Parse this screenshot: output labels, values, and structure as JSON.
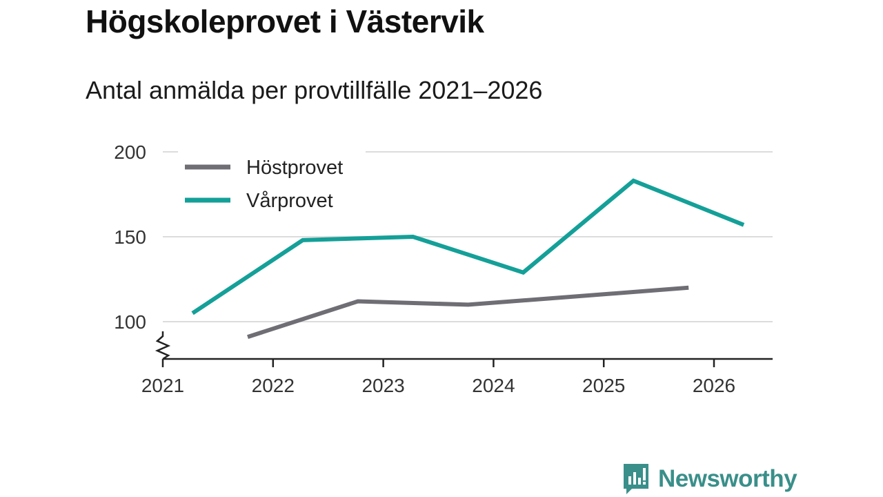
{
  "title": "Högskoleprovet i Västervik",
  "subtitle": "Antal anmälda per provtillfälle 2021–2026",
  "brand": {
    "name": "Newsworthy",
    "icon": "newsworthy-logo-icon",
    "color": "#3a8f8a"
  },
  "chart_data": {
    "type": "line",
    "title": "Högskoleprovet i Västervik",
    "subtitle": "Antal anmälda per provtillfälle 2021–2026",
    "xlabel": "",
    "ylabel": "",
    "xlim": [
      2021,
      2026.6
    ],
    "ylim": [
      78,
      200
    ],
    "y_axis_break": true,
    "grid": true,
    "legend_position": "top-left",
    "x_ticks": [
      "2021",
      "2022",
      "2023",
      "2024",
      "2025",
      "2026"
    ],
    "y_ticks": [
      "100",
      "150",
      "200"
    ],
    "series": [
      {
        "name": "Höstprovet",
        "color": "#6e6e74",
        "x": [
          2021.77,
          2022.77,
          2023.77,
          2024.77,
          2025.77
        ],
        "values": [
          91,
          112,
          110,
          115,
          120
        ]
      },
      {
        "name": "Vårprovet",
        "color": "#14a098",
        "x": [
          2021.27,
          2022.27,
          2023.27,
          2024.27,
          2025.27,
          2026.27
        ],
        "values": [
          105,
          148,
          150,
          129,
          183,
          157
        ]
      }
    ]
  }
}
